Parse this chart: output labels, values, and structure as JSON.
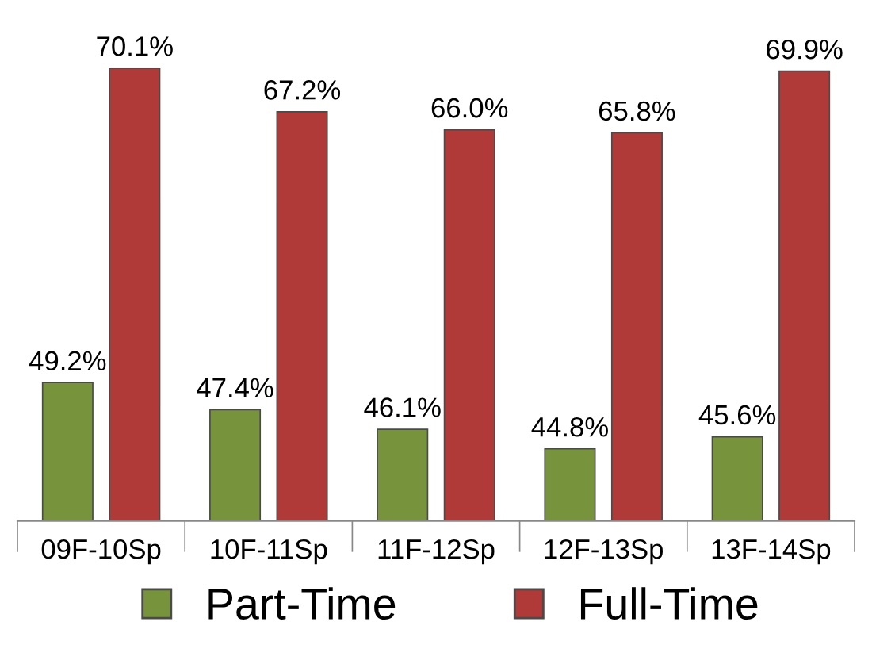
{
  "chart_data": {
    "type": "bar",
    "categories": [
      "09F-10Sp",
      "10F-11Sp",
      "11F-12Sp",
      "12F-13Sp",
      "13F-14Sp"
    ],
    "series": [
      {
        "name": "Part-Time",
        "color": "#77933c",
        "values": [
          49.2,
          47.4,
          46.1,
          44.8,
          45.6
        ],
        "value_labels": [
          "49.2%",
          "47.4%",
          "46.1%",
          "44.8%",
          "45.6%"
        ]
      },
      {
        "name": "Full-Time",
        "color": "#b03a37",
        "values": [
          70.1,
          67.2,
          66.0,
          65.8,
          69.9
        ],
        "value_labels": [
          "70.1%",
          "67.2%",
          "66.0%",
          "65.8%",
          "69.9%"
        ]
      }
    ],
    "ylim": [
      40,
      70.1
    ],
    "legend": "bottom",
    "grid": false
  }
}
